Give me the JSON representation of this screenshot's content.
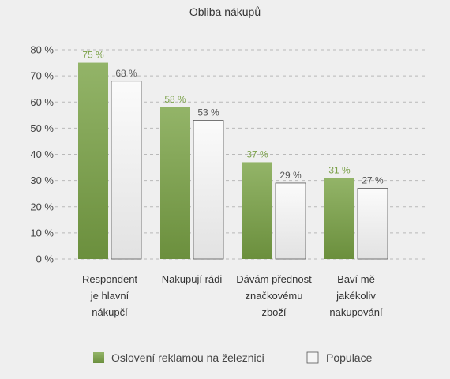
{
  "chart_data": {
    "type": "bar",
    "title": "Obliba nákupů",
    "categories": [
      [
        "Respondent",
        "je hlavní",
        "nákupčí"
      ],
      [
        "Nakupují rádi"
      ],
      [
        "Dávám přednost",
        "značkovému",
        "zboží"
      ],
      [
        "Baví mě",
        "jakékoliv",
        "nakupování"
      ]
    ],
    "series": [
      {
        "name": "Oslovení reklamou na železnici",
        "values": [
          75,
          58,
          37,
          31
        ],
        "labels": [
          "75 %",
          "58 %",
          "37 %",
          "31 %"
        ]
      },
      {
        "name": "Populace",
        "values": [
          68,
          53,
          29,
          27
        ],
        "labels": [
          "68 %",
          "53 %",
          "29 %",
          "27 %"
        ]
      }
    ],
    "yticks": [
      0,
      10,
      20,
      30,
      40,
      50,
      60,
      70,
      80
    ],
    "ytick_labels": [
      "0 %",
      "10 %",
      "20 %",
      "30 %",
      "40 %",
      "50 %",
      "60 %",
      "70 %",
      "80 %"
    ],
    "ylim": [
      0,
      80
    ],
    "grid": true,
    "legend_position": "bottom",
    "colors": {
      "series1_fill_top": "#93b468",
      "series1_fill_bottom": "#6b8f3d",
      "series1_label": "#7aa048",
      "series2_fill_top": "#fbfbfb",
      "series2_fill_bottom": "#e2e2e2",
      "series2_stroke": "#555555",
      "grid": "#b9b9b9",
      "text": "#444444"
    }
  }
}
